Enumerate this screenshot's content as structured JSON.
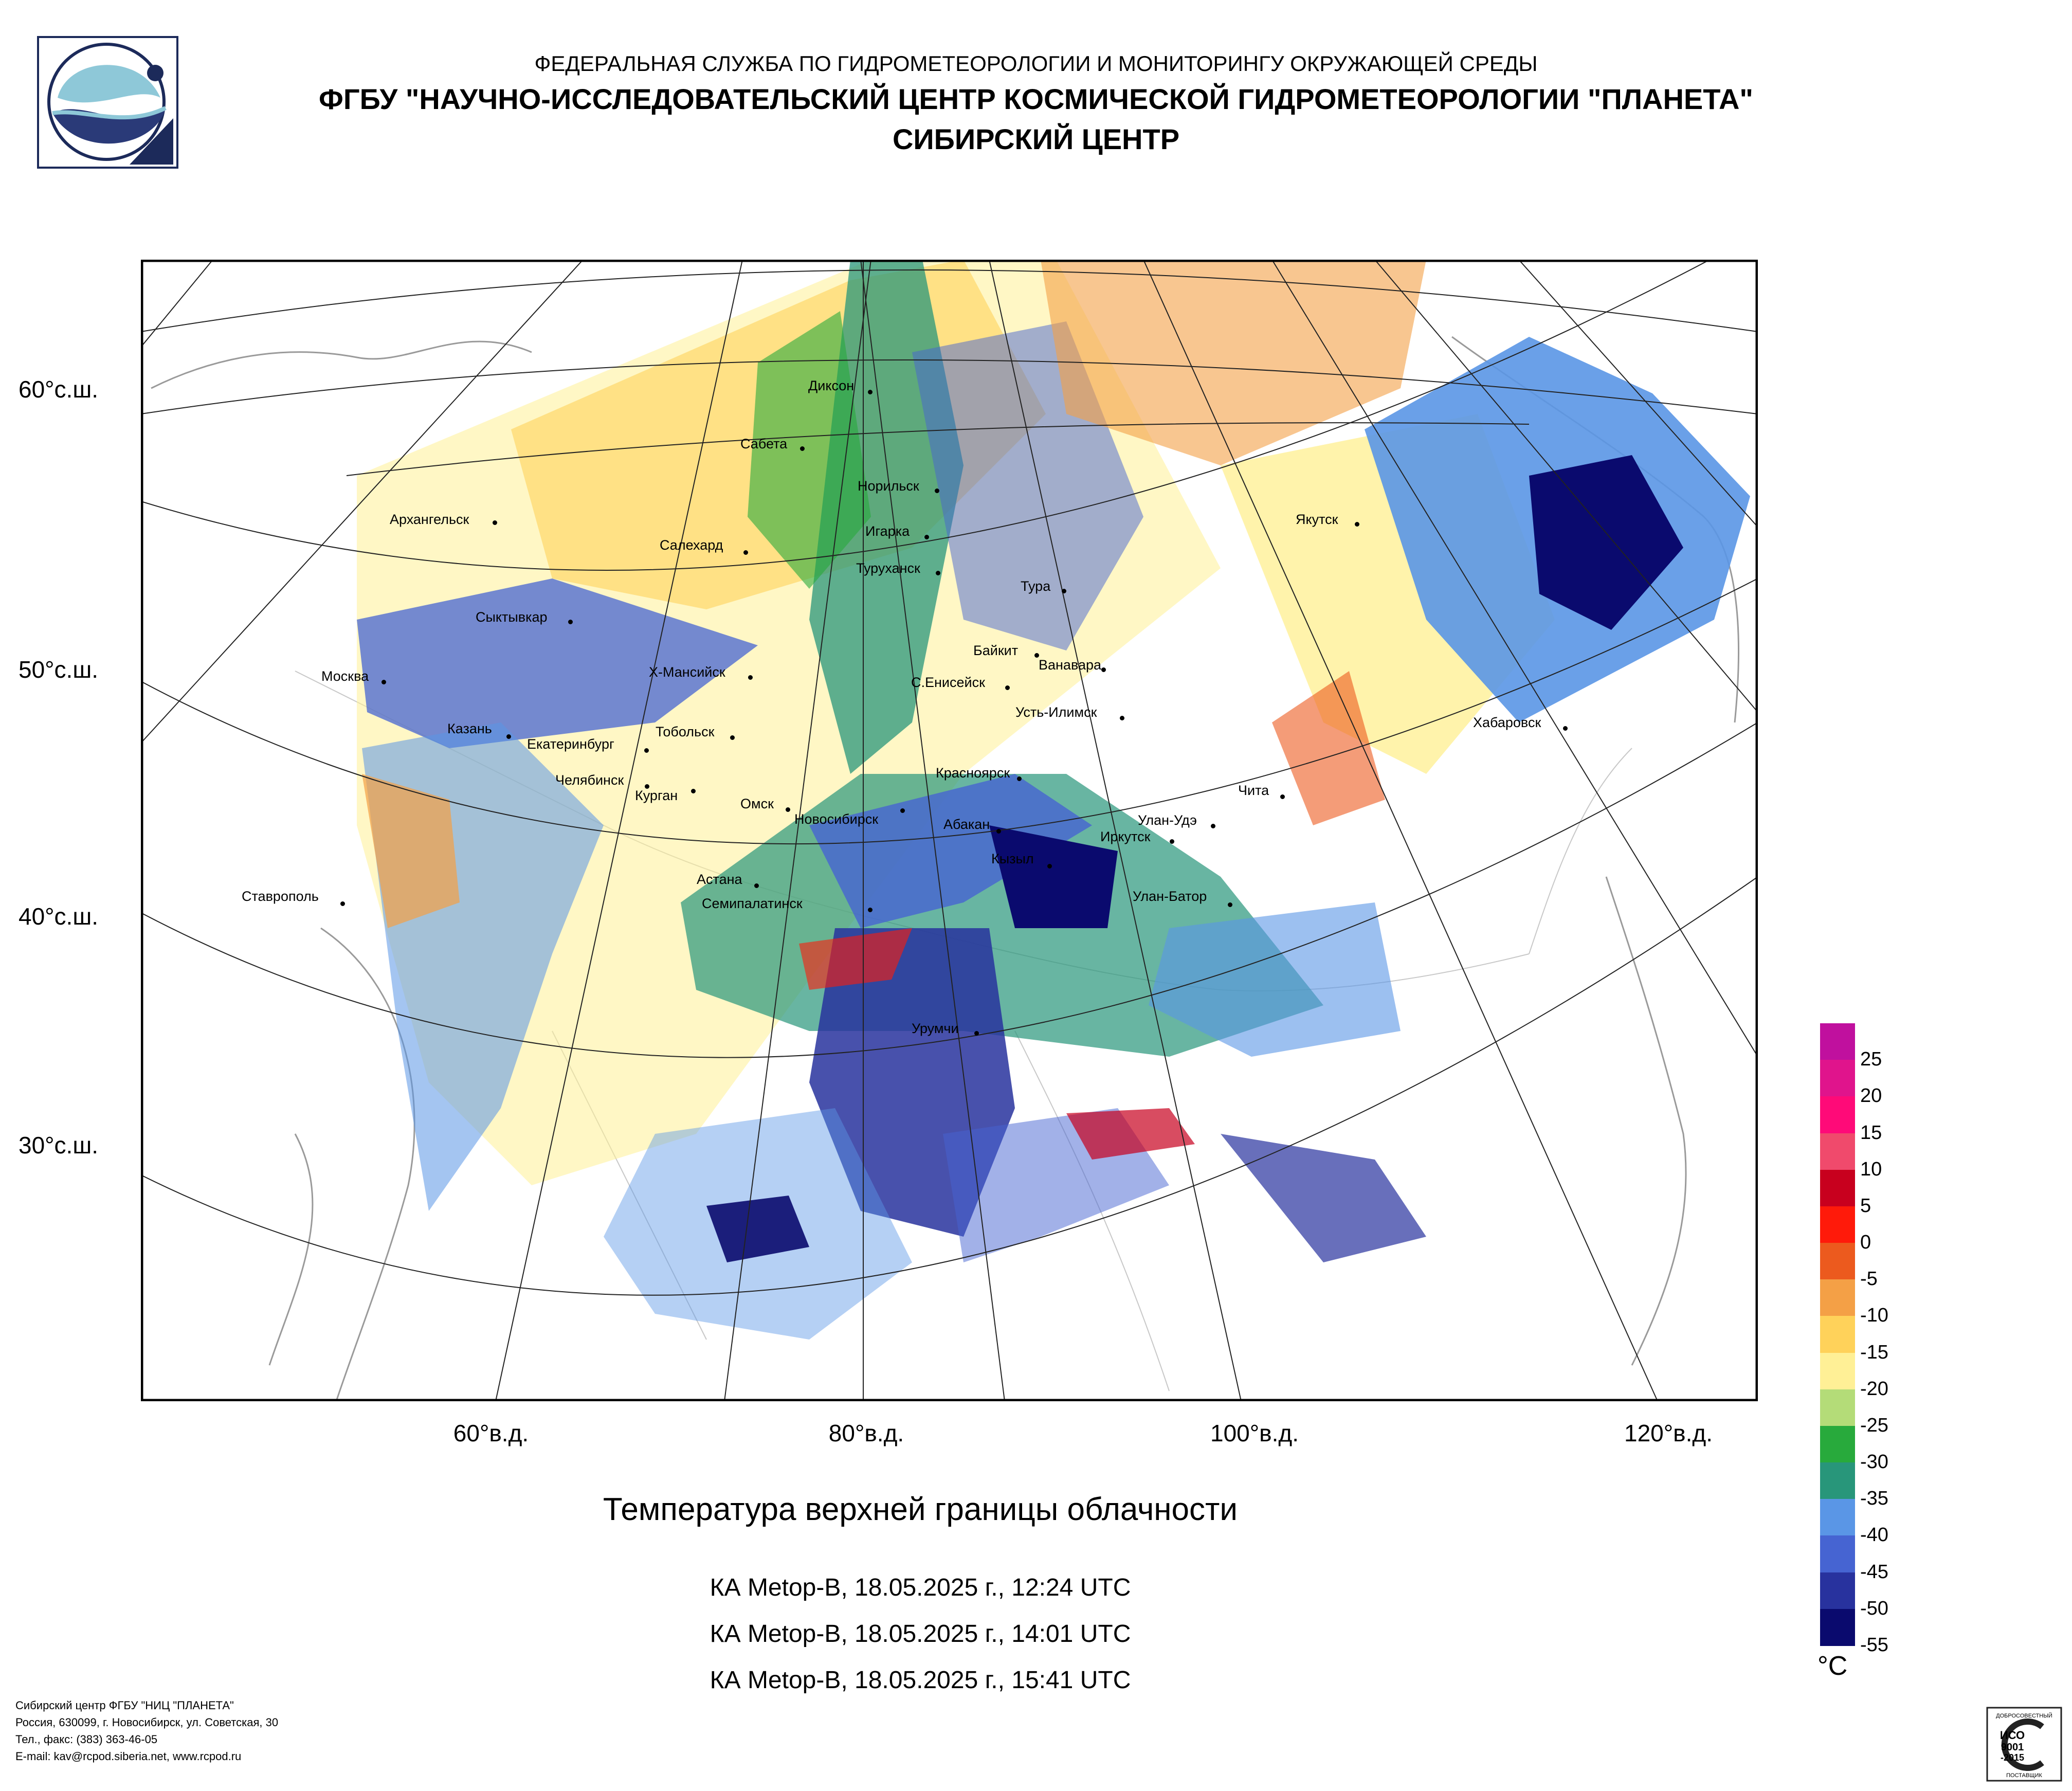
{
  "header": {
    "line1": "ФЕДЕРАЛЬНАЯ СЛУЖБА ПО ГИДРОМЕТЕОРОЛОГИИ И МОНИТОРИНГУ ОКРУЖАЮЩЕЙ СРЕДЫ",
    "line2": "ФГБУ \"НАУЧНО-ИССЛЕДОВАТЕЛЬСКИЙ ЦЕНТР КОСМИЧЕСКОЙ ГИДРОМЕТЕОРОЛОГИИ \"ПЛАНЕТА\"",
    "line3": "СИБИРСКИЙ ЦЕНТР"
  },
  "map": {
    "title": "Температура верхней границы облачности",
    "passes": [
      "КА Metop-B, 18.05.2025 г., 12:24 UTC",
      "КА Metop-B, 18.05.2025 г., 14:01 UTC",
      "КА Metop-B, 18.05.2025 г., 15:41 UTC"
    ],
    "lat_labels": [
      "60°с.ш.",
      "50°с.ш.",
      "40°с.ш.",
      "30°с.ш."
    ],
    "lon_labels": [
      "60°в.д.",
      "80°в.д.",
      "100°в.д.",
      "120°в.д."
    ],
    "cities": [
      "Диксон",
      "Сабета",
      "Норильск",
      "Игарка",
      "Архангельск",
      "Салехард",
      "Туруханск",
      "Тура",
      "Якутск",
      "Сыктывкар",
      "Байкит",
      "Ванавара",
      "Москва",
      "Х-Мансийск",
      "С.Енисейск",
      "Усть-Илимск",
      "Казань",
      "Екатеринбург",
      "Тобольск",
      "Хабаровск",
      "Челябинск",
      "Курган",
      "Красноярск",
      "Чита",
      "Омск",
      "Новосибирск",
      "Абакан",
      "Улан-Удэ",
      "Иркутск",
      "Кызыл",
      "Ставрополь",
      "Астана",
      "Семипалатинск",
      "Улан-Батор",
      "Урумчи"
    ]
  },
  "colorbar": {
    "unit": "°C",
    "labels": [
      "25",
      "20",
      "15",
      "10",
      "5",
      "0",
      "-5",
      "-10",
      "-15",
      "-20",
      "-25",
      "-30",
      "-35",
      "-40",
      "-45",
      "-50",
      "-55"
    ],
    "colors": [
      "#c0109e",
      "#e0148c",
      "#ff0a78",
      "#f04a6c",
      "#c8001e",
      "#ff1a0a",
      "#ec5a1e",
      "#f4a046",
      "#ffd25a",
      "#fff096",
      "#b4dc78",
      "#28aa3c",
      "#28967a",
      "#5a96e6",
      "#4664d2",
      "#28329e",
      "#0a0a6e"
    ]
  },
  "footer": {
    "lines": [
      "Сибирский центр ФГБУ \"НИЦ \"ПЛАНЕТА\"",
      "Россия, 630099, г. Новосибирск, ул. Советская, 30",
      "Тел., факс: (383) 363-46-05",
      "E-mail: kav@rcpod.siberia.net, www.rcpod.ru"
    ]
  },
  "badge": {
    "top_text": "ДОБРОСОВЕСТНЫЙ",
    "line1": "ИСО",
    "line2": "9001",
    "line3": "-2015",
    "bottom_text": "ПОСТАВЩИК"
  }
}
